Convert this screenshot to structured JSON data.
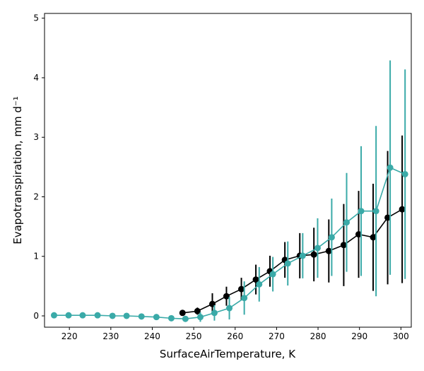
{
  "chart_data": {
    "type": "line",
    "xlabel": "SurfaceAirTemperature,  K",
    "ylabel": "Evapotranspiration,  mm d⁻¹",
    "xlim": [
      214,
      302.5
    ],
    "ylim": [
      -0.19,
      5.08
    ],
    "xticks": [
      220,
      230,
      240,
      250,
      260,
      270,
      280,
      290,
      300
    ],
    "yticks": [
      0,
      1,
      2,
      3,
      4,
      5
    ],
    "series": [
      {
        "color": "#000000",
        "x": [
          247.3,
          250.9,
          254.5,
          257.9,
          261.5,
          265.0,
          268.4,
          272.0,
          275.6,
          279.0,
          282.6,
          286.2,
          289.8,
          293.3,
          296.8,
          300.3
        ],
        "values": [
          0.05,
          0.08,
          0.2,
          0.33,
          0.45,
          0.61,
          0.75,
          0.94,
          1.01,
          1.03,
          1.09,
          1.19,
          1.37,
          1.32,
          1.65,
          1.79
        ],
        "errors": [
          0.02,
          0.06,
          0.18,
          0.16,
          0.19,
          0.25,
          0.26,
          0.3,
          0.38,
          0.45,
          0.53,
          0.69,
          0.73,
          0.9,
          1.12,
          1.24
        ]
      },
      {
        "color": "#3aaaa8",
        "x": [
          216.3,
          219.8,
          223.2,
          226.8,
          230.4,
          233.8,
          237.4,
          241.0,
          244.6,
          248.0,
          251.6,
          255.0,
          258.6,
          262.2,
          265.8,
          269.1,
          272.7,
          276.3,
          279.9,
          283.3,
          286.9,
          290.4,
          294.0,
          297.4,
          301.0
        ],
        "values": [
          0.01,
          0.01,
          0.01,
          0.01,
          0,
          0,
          -0.01,
          -0.02,
          -0.04,
          -0.05,
          -0.02,
          0.05,
          0.13,
          0.3,
          0.53,
          0.7,
          0.88,
          1.01,
          1.14,
          1.32,
          1.57,
          1.76,
          1.76,
          2.49,
          2.38
        ],
        "errors": [
          0,
          0,
          0,
          0,
          0,
          0,
          0,
          0,
          0,
          0.02,
          0.08,
          0.13,
          0.19,
          0.28,
          0.29,
          0.29,
          0.37,
          0.38,
          0.5,
          0.65,
          0.83,
          1.09,
          1.43,
          1.8,
          1.76
        ]
      }
    ]
  }
}
